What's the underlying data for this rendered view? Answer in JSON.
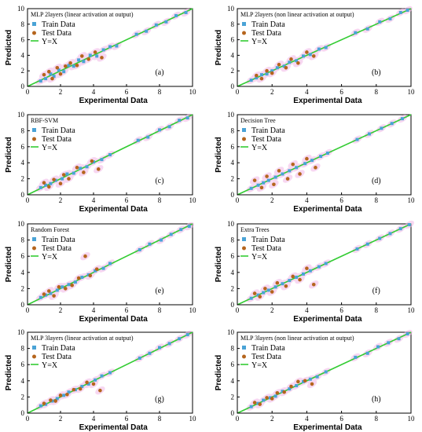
{
  "figure": {
    "xlabel": "Experimental Data",
    "ylabel": "Predicted",
    "legend": {
      "train": "Train Data",
      "test": "Test Data",
      "line": "Y=X"
    },
    "colors": {
      "train": "#4aa3d6",
      "test": "#b5651d",
      "line": "#33cc33",
      "halo": "#f2b8e6"
    }
  },
  "chart_data": [
    {
      "type": "scatter",
      "panel": "(a)",
      "title": "MLP 2layers (linear activation at output)",
      "xlabel": "Experimental Data",
      "ylabel": "Predicted",
      "xlim": [
        0,
        10
      ],
      "ylim": [
        0,
        10
      ],
      "xticks": [
        0,
        2,
        4,
        6,
        8,
        10
      ],
      "yticks": [
        0,
        2,
        4,
        6,
        8,
        10
      ],
      "legend_position": "top-left",
      "series": [
        {
          "name": "Train Data",
          "x": [
            0.8,
            1.1,
            1.4,
            1.6,
            1.9,
            2.2,
            2.5,
            2.8,
            3.1,
            3.4,
            3.8,
            4.2,
            4.6,
            5.0,
            5.4,
            6.6,
            7.2,
            7.8,
            8.4,
            9.0,
            9.6
          ],
          "y": [
            0.7,
            1.0,
            1.6,
            1.3,
            2.1,
            1.9,
            2.7,
            2.6,
            3.4,
            3.2,
            4.0,
            3.9,
            4.7,
            5.1,
            5.2,
            6.7,
            7.1,
            7.9,
            8.3,
            9.1,
            9.5
          ]
        },
        {
          "name": "Test Data",
          "x": [
            1.0,
            1.3,
            1.5,
            1.8,
            2.0,
            2.3,
            2.6,
            3.0,
            3.3,
            3.7,
            4.1,
            4.5
          ],
          "y": [
            1.5,
            1.9,
            1.0,
            2.4,
            1.6,
            2.6,
            3.0,
            2.7,
            3.9,
            3.5,
            4.4,
            3.7
          ]
        },
        {
          "name": "Y=X",
          "x": [
            0,
            10
          ],
          "y": [
            0,
            10
          ]
        }
      ]
    },
    {
      "type": "scatter",
      "panel": "(b)",
      "title": "MLP 2layers (non linear activation at output)",
      "xlabel": "Experimental Data",
      "ylabel": "Predicted",
      "xlim": [
        0,
        10
      ],
      "ylim": [
        0,
        10
      ],
      "xticks": [
        0,
        2,
        4,
        6,
        8,
        10
      ],
      "yticks": [
        0,
        2,
        4,
        6,
        8,
        10
      ],
      "legend_position": "top-left",
      "series": [
        {
          "name": "Train Data",
          "x": [
            0.8,
            1.1,
            1.4,
            1.7,
            2.0,
            2.3,
            2.7,
            3.0,
            3.4,
            3.8,
            4.2,
            4.7,
            5.1,
            6.8,
            7.5,
            8.2,
            8.8,
            9.4,
            9.8
          ],
          "y": [
            0.8,
            1.1,
            1.5,
            1.6,
            2.0,
            2.4,
            2.6,
            3.1,
            3.3,
            3.9,
            4.1,
            4.8,
            5.0,
            6.9,
            7.4,
            8.3,
            8.7,
            9.5,
            9.8
          ]
        },
        {
          "name": "Test Data",
          "x": [
            1.1,
            1.4,
            1.7,
            2.0,
            2.4,
            2.8,
            3.1,
            3.5,
            4.0,
            4.4
          ],
          "y": [
            1.4,
            1.0,
            2.0,
            1.7,
            2.8,
            2.4,
            3.5,
            3.0,
            4.4,
            3.9
          ]
        },
        {
          "name": "Y=X",
          "x": [
            0,
            10
          ],
          "y": [
            0,
            10
          ]
        }
      ]
    },
    {
      "type": "scatter",
      "panel": "(c)",
      "title": "RBF-SVM",
      "xlabel": "Experimental Data",
      "ylabel": "Predicted",
      "xlim": [
        0,
        10
      ],
      "ylim": [
        0,
        10
      ],
      "xticks": [
        0,
        2,
        4,
        6,
        8,
        10
      ],
      "yticks": [
        0,
        2,
        4,
        6,
        8,
        10
      ],
      "legend_position": "top-left",
      "series": [
        {
          "name": "Train Data",
          "x": [
            0.8,
            1.1,
            1.4,
            1.7,
            2.1,
            2.4,
            2.8,
            3.2,
            3.6,
            4.0,
            4.5,
            5.0,
            6.7,
            7.3,
            8.0,
            8.6,
            9.2,
            9.7
          ],
          "y": [
            0.9,
            1.2,
            1.4,
            1.8,
            2.0,
            2.6,
            2.7,
            3.3,
            3.5,
            4.1,
            4.4,
            5.0,
            6.8,
            7.2,
            8.1,
            8.5,
            9.3,
            9.6
          ]
        },
        {
          "name": "Test Data",
          "x": [
            1.0,
            1.3,
            1.6,
            2.0,
            2.2,
            2.5,
            3.0,
            3.4,
            3.9,
            4.3
          ],
          "y": [
            1.5,
            1.0,
            1.9,
            1.4,
            2.5,
            2.0,
            3.4,
            2.8,
            4.2,
            3.2
          ]
        },
        {
          "name": "Y=X",
          "x": [
            0,
            10
          ],
          "y": [
            0,
            10
          ]
        }
      ]
    },
    {
      "type": "scatter",
      "panel": "(d)",
      "title": "Decision Tree",
      "xlabel": "Experimental Data",
      "ylabel": "Predicted",
      "xlim": [
        0,
        10
      ],
      "ylim": [
        0,
        10
      ],
      "xticks": [
        0,
        2,
        4,
        6,
        8,
        10
      ],
      "yticks": [
        0,
        2,
        4,
        6,
        8,
        10
      ],
      "legend_position": "top-left",
      "series": [
        {
          "name": "Train Data",
          "x": [
            0.8,
            1.2,
            1.5,
            1.8,
            2.2,
            2.6,
            3.0,
            3.4,
            3.9,
            4.3,
            4.8,
            5.2,
            6.9,
            7.6,
            8.3,
            8.9,
            9.5
          ],
          "y": [
            0.8,
            1.2,
            1.5,
            1.8,
            2.2,
            2.6,
            3.0,
            3.4,
            3.9,
            4.3,
            4.8,
            5.2,
            6.9,
            7.6,
            8.3,
            8.9,
            9.5
          ]
        },
        {
          "name": "Test Data",
          "x": [
            1.0,
            1.4,
            1.7,
            2.1,
            2.4,
            2.9,
            3.2,
            3.6,
            4.0,
            4.5
          ],
          "y": [
            1.8,
            0.9,
            2.3,
            1.3,
            3.0,
            2.0,
            3.8,
            2.6,
            4.5,
            3.4
          ]
        },
        {
          "name": "Y=X",
          "x": [
            0,
            10
          ],
          "y": [
            0,
            10
          ]
        }
      ]
    },
    {
      "type": "scatter",
      "panel": "(e)",
      "title": "Random Forest",
      "xlabel": "Experimental Data",
      "ylabel": "Predicted",
      "xlim": [
        0,
        10
      ],
      "ylim": [
        0,
        10
      ],
      "xticks": [
        0,
        2,
        4,
        6,
        8,
        10
      ],
      "yticks": [
        0,
        2,
        4,
        6,
        8,
        10
      ],
      "legend_position": "top-left",
      "series": [
        {
          "name": "Train Data",
          "x": [
            0.8,
            1.1,
            1.4,
            1.8,
            2.1,
            2.5,
            2.9,
            3.3,
            3.7,
            4.1,
            4.6,
            5.0,
            6.8,
            7.4,
            8.1,
            8.7,
            9.3,
            9.8
          ],
          "y": [
            0.9,
            1.2,
            1.4,
            1.8,
            2.2,
            2.5,
            2.8,
            3.4,
            3.7,
            4.2,
            4.5,
            5.1,
            6.8,
            7.5,
            8.0,
            8.7,
            9.3,
            9.7
          ]
        },
        {
          "name": "Test Data",
          "x": [
            1.0,
            1.3,
            1.6,
            1.9,
            2.3,
            2.7,
            3.1,
            3.5,
            3.8,
            4.2
          ],
          "y": [
            1.3,
            1.7,
            1.1,
            2.2,
            2.0,
            2.4,
            3.3,
            6.0,
            3.6,
            4.4
          ]
        },
        {
          "name": "Y=X",
          "x": [
            0,
            10
          ],
          "y": [
            0,
            10
          ]
        }
      ]
    },
    {
      "type": "scatter",
      "panel": "(f)",
      "title": "Extra Trees",
      "xlabel": "Experimental Data",
      "ylabel": "Predicted",
      "xlim": [
        0,
        10
      ],
      "ylim": [
        0,
        10
      ],
      "xticks": [
        0,
        2,
        4,
        6,
        8,
        10
      ],
      "yticks": [
        0,
        2,
        4,
        6,
        8,
        10
      ],
      "legend_position": "top-left",
      "series": [
        {
          "name": "Train Data",
          "x": [
            0.8,
            1.2,
            1.5,
            1.8,
            2.2,
            2.6,
            3.0,
            3.4,
            3.8,
            4.2,
            4.7,
            5.1,
            6.9,
            7.5,
            8.2,
            8.8,
            9.4,
            9.9
          ],
          "y": [
            0.8,
            1.2,
            1.5,
            1.8,
            2.2,
            2.6,
            3.0,
            3.4,
            3.8,
            4.2,
            4.7,
            5.1,
            6.9,
            7.5,
            8.2,
            8.8,
            9.4,
            9.9
          ]
        },
        {
          "name": "Test Data",
          "x": [
            1.0,
            1.3,
            1.6,
            2.0,
            2.3,
            2.8,
            3.2,
            3.6,
            4.0,
            4.4
          ],
          "y": [
            1.4,
            1.0,
            2.0,
            1.6,
            2.7,
            2.3,
            3.5,
            3.1,
            4.5,
            2.5
          ]
        },
        {
          "name": "Y=X",
          "x": [
            0,
            10
          ],
          "y": [
            0,
            10
          ]
        }
      ]
    },
    {
      "type": "scatter",
      "panel": "(g)",
      "title": "MLP 3layers (linear activation at output)",
      "xlabel": "Experimental Data",
      "ylabel": "Predicted",
      "xlim": [
        0,
        10
      ],
      "ylim": [
        0,
        10
      ],
      "xticks": [
        0,
        2,
        4,
        6,
        8,
        10
      ],
      "yticks": [
        0,
        2,
        4,
        6,
        8,
        10
      ],
      "legend_position": "top-left",
      "series": [
        {
          "name": "Train Data",
          "x": [
            0.8,
            1.1,
            1.5,
            1.8,
            2.2,
            2.5,
            2.9,
            3.3,
            3.7,
            4.1,
            4.5,
            5.0,
            6.8,
            7.4,
            8.0,
            8.6,
            9.2,
            9.7
          ],
          "y": [
            0.9,
            1.1,
            1.5,
            1.8,
            2.2,
            2.6,
            2.9,
            3.3,
            3.6,
            4.1,
            4.6,
            5.0,
            6.8,
            7.4,
            8.1,
            8.6,
            9.2,
            9.7
          ]
        },
        {
          "name": "Test Data",
          "x": [
            1.0,
            1.4,
            1.7,
            2.0,
            2.4,
            2.8,
            3.2,
            3.6,
            4.0,
            4.4
          ],
          "y": [
            1.2,
            1.6,
            1.5,
            2.2,
            2.3,
            2.9,
            3.0,
            3.8,
            3.6,
            2.8
          ]
        },
        {
          "name": "Y=X",
          "x": [
            0,
            10
          ],
          "y": [
            0,
            10
          ]
        }
      ]
    },
    {
      "type": "scatter",
      "panel": "(h)",
      "title": "MLP 3layers (non linear activation at output)",
      "xlabel": "Experimental Data",
      "ylabel": "Predicted",
      "xlim": [
        0,
        10
      ],
      "ylim": [
        0,
        10
      ],
      "xticks": [
        0,
        2,
        4,
        6,
        8,
        10
      ],
      "yticks": [
        0,
        2,
        4,
        6,
        8,
        10
      ],
      "legend_position": "top-left",
      "series": [
        {
          "name": "Train Data",
          "x": [
            0.8,
            1.2,
            1.5,
            1.9,
            2.2,
            2.6,
            3.0,
            3.4,
            3.8,
            4.2,
            4.6,
            5.1,
            6.8,
            7.5,
            8.1,
            8.7,
            9.3,
            9.8
          ],
          "y": [
            0.8,
            1.2,
            1.6,
            1.9,
            2.1,
            2.7,
            3.0,
            3.4,
            3.9,
            4.2,
            4.5,
            5.1,
            6.9,
            7.4,
            8.2,
            8.7,
            9.2,
            9.8
          ]
        },
        {
          "name": "Test Data",
          "x": [
            1.0,
            1.3,
            1.7,
            2.0,
            2.3,
            2.7,
            3.1,
            3.5,
            3.9,
            4.3
          ],
          "y": [
            1.3,
            1.1,
            1.9,
            1.8,
            2.5,
            2.6,
            3.3,
            3.9,
            4.0,
            3.6
          ]
        },
        {
          "name": "Y=X",
          "x": [
            0,
            10
          ],
          "y": [
            0,
            10
          ]
        }
      ]
    }
  ]
}
